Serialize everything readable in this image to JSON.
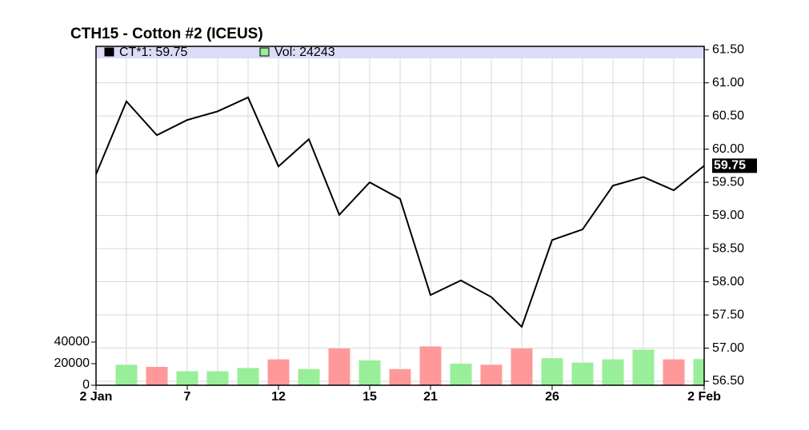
{
  "chart_data": {
    "type": "line",
    "title": "CTH15 - Cotton #2 (ICEUS)",
    "categories": [
      "2 Jan",
      null,
      null,
      "7",
      null,
      null,
      "12",
      null,
      null,
      "15",
      null,
      "21",
      null,
      null,
      null,
      "26",
      null,
      null,
      null,
      null,
      "2 Feb"
    ],
    "series": [
      {
        "name": "CT*1: 59.75",
        "color": "#000000",
        "axis": "y",
        "values": [
          59.62,
          60.72,
          60.21,
          60.44,
          60.57,
          60.78,
          59.74,
          60.15,
          59.01,
          59.5,
          59.25,
          57.8,
          58.02,
          57.77,
          57.32,
          58.63,
          58.79,
          59.45,
          59.58,
          59.38,
          59.75
        ],
        "value_labels": [
          null,
          null,
          null,
          null,
          null,
          null,
          null,
          null,
          null,
          null,
          null,
          null,
          null,
          null,
          null,
          null,
          null,
          null,
          null,
          null,
          "59.75"
        ]
      },
      {
        "name": "Vol: 24243",
        "type": "bar",
        "color": "#99ee99",
        "axis": "y2",
        "values": [
          null,
          19000,
          17000,
          13000,
          13000,
          16000,
          24000,
          15000,
          34000,
          23000,
          15000,
          36000,
          20000,
          19000,
          34000,
          25000,
          21000,
          24000,
          33000,
          24000,
          24243
        ],
        "colors": [
          null,
          "#99ee99",
          "#ff9999",
          "#99ee99",
          "#99ee99",
          "#99ee99",
          "#ff9999",
          "#99ee99",
          "#ff9999",
          "#99ee99",
          "#ff9999",
          "#ff9999",
          "#99ee99",
          "#ff9999",
          "#ff9999",
          "#99ee99",
          "#99ee99",
          "#99ee99",
          "#99ee99",
          "#ff9999",
          "#99ee99"
        ]
      }
    ],
    "ylim": [
      56.44,
      61.55
    ],
    "yticks": [
      {
        "value": 56.5,
        "label": "56.50"
      },
      {
        "value": 57,
        "label": "57.00"
      },
      {
        "value": 57.5,
        "label": "57.50"
      },
      {
        "value": 58,
        "label": "58.00"
      },
      {
        "value": 58.5,
        "label": "58.50"
      },
      {
        "value": 59,
        "label": "59.00"
      },
      {
        "value": 59.5,
        "label": "59.50"
      },
      {
        "value": 60,
        "label": "60.00"
      },
      {
        "value": 60.5,
        "label": "60.50"
      },
      {
        "value": 61,
        "label": "61.00"
      },
      {
        "value": 61.5,
        "label": "61.50"
      }
    ],
    "y2lim": [
      0,
      314000
    ],
    "y2ticks": [
      0,
      20000,
      40000
    ],
    "grid": true
  }
}
